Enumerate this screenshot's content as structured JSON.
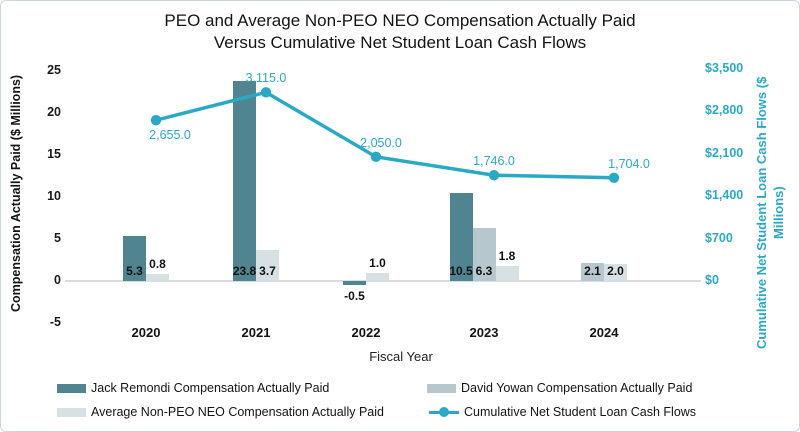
{
  "title": {
    "line1": "PEO and Average Non-PEO NEO Compensation Actually Paid",
    "line2": "Versus Cumulative Net Student Loan Cash Flows"
  },
  "chart_data": {
    "type": "bar+line combo",
    "categories": [
      "2020",
      "2021",
      "2022",
      "2023",
      "2024"
    ],
    "xlabel": "Fiscal Year",
    "grid": "zero-line only",
    "left_axis": {
      "label": "Compensation Actually Paid ($ Millions)",
      "ticks": [
        25,
        20,
        15,
        10,
        5,
        0,
        -5
      ],
      "range": [
        -5,
        25
      ]
    },
    "right_axis": {
      "label": "Cumulative Net Student Loan Cash Flows ($ Millions)",
      "ticks": [
        "$3,500",
        "$2,800",
        "$2,100",
        "$1,400",
        "$700",
        "$0"
      ],
      "tick_values": [
        3500,
        2800,
        2100,
        1400,
        700,
        0
      ],
      "range": [
        0,
        3500
      ]
    },
    "series": [
      {
        "key": "jack-remondi",
        "name": "Jack Remondi Compensation Actually Paid",
        "type": "bar",
        "color": "#4f8490",
        "values": [
          5.3,
          23.8,
          -0.5,
          10.5,
          null
        ],
        "labels": [
          "5.3",
          "23.8",
          "-0.5",
          "10.5",
          null
        ]
      },
      {
        "key": "david-yowan",
        "name": "David Yowan Compensation Actually Paid",
        "type": "bar",
        "color": "#b6c7cd",
        "values": [
          null,
          null,
          null,
          6.3,
          2.1
        ],
        "labels": [
          null,
          null,
          null,
          "6.3",
          "2.1"
        ]
      },
      {
        "key": "avg-non-peo-neo",
        "name": "Average Non-PEO NEO Compensation Actually Paid",
        "type": "bar",
        "color": "#d7e0e3",
        "values": [
          0.8,
          3.7,
          1.0,
          1.8,
          2.0
        ],
        "labels": [
          "0.8",
          "3.7",
          "1.0",
          "1.8",
          "2.0"
        ]
      },
      {
        "key": "cumulative-cash-flows",
        "name": "Cumulative Net Student Loan Cash Flows",
        "type": "line",
        "color": "#2aa9c6",
        "values": [
          2655,
          3115,
          2050,
          1746,
          1704
        ],
        "labels": [
          "2,655.0",
          "3,115.0",
          "2,050.0",
          "1,746.0",
          "1,704.0"
        ]
      }
    ],
    "legend_position": "bottom"
  },
  "colors": {
    "bar_dark_teal": "#4f8490",
    "bar_medium_gray": "#b6c7cd",
    "bar_light_gray": "#d7e0e3",
    "line_teal": "#2aa9c6",
    "zero_gridline": "#dcdcdc",
    "text": "#141414"
  }
}
